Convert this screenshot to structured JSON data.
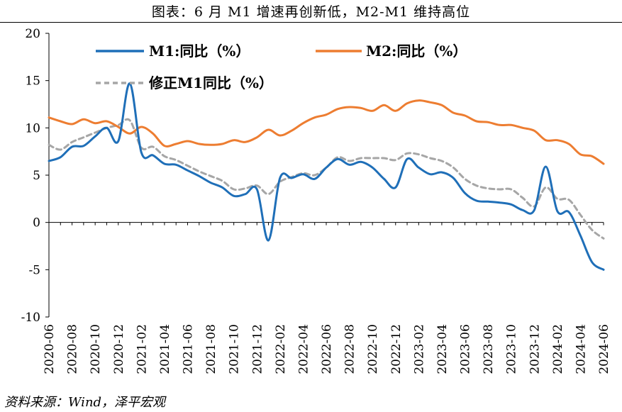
{
  "title": "图表：6 月 M1 增速再创新低，M2-M1 维持高位",
  "source": "资料来源：Wind，泽平宏观",
  "chart_data": {
    "type": "line",
    "ylim": [
      -10,
      20
    ],
    "yticks": [
      -10,
      -5,
      0,
      5,
      10,
      15,
      20
    ],
    "x": [
      "2020-06",
      "2020-07",
      "2020-08",
      "2020-09",
      "2020-10",
      "2020-11",
      "2020-12",
      "2021-01",
      "2021-02",
      "2021-03",
      "2021-04",
      "2021-05",
      "2021-06",
      "2021-07",
      "2021-08",
      "2021-09",
      "2021-10",
      "2021-11",
      "2021-12",
      "2022-01",
      "2022-02",
      "2022-03",
      "2022-04",
      "2022-05",
      "2022-06",
      "2022-07",
      "2022-08",
      "2022-09",
      "2022-10",
      "2022-11",
      "2022-12",
      "2023-01",
      "2023-02",
      "2023-03",
      "2023-04",
      "2023-05",
      "2023-06",
      "2023-07",
      "2023-08",
      "2023-09",
      "2023-10",
      "2023-11",
      "2023-12",
      "2024-01",
      "2024-02",
      "2024-03",
      "2024-04",
      "2024-05",
      "2024-06"
    ],
    "xticks": [
      "2020-06",
      "2020-08",
      "2020-10",
      "2020-12",
      "2021-02",
      "2021-04",
      "2021-06",
      "2021-08",
      "2021-10",
      "2021-12",
      "2022-02",
      "2022-04",
      "2022-06",
      "2022-08",
      "2022-10",
      "2022-12",
      "2023-02",
      "2023-04",
      "2023-06",
      "2023-08",
      "2023-10",
      "2023-12",
      "2024-02",
      "2024-04",
      "2024-06"
    ],
    "series": [
      {
        "name": "M1:同比（%）",
        "color": "#1f6fb8",
        "dash": false,
        "values": [
          6.5,
          6.9,
          8.0,
          8.1,
          9.1,
          10.0,
          8.6,
          14.7,
          7.4,
          7.1,
          6.2,
          6.1,
          5.5,
          4.9,
          4.2,
          3.7,
          2.8,
          3.0,
          3.5,
          -1.9,
          4.7,
          4.7,
          5.1,
          4.6,
          5.8,
          6.7,
          6.1,
          6.4,
          5.8,
          4.6,
          3.7,
          6.7,
          5.8,
          5.1,
          5.3,
          4.7,
          3.1,
          2.3,
          2.2,
          2.1,
          1.9,
          1.3,
          1.3,
          5.9,
          1.2,
          1.1,
          -1.4,
          -4.2,
          -5.0
        ]
      },
      {
        "name": "M2:同比（%）",
        "color": "#ed7d31",
        "dash": false,
        "values": [
          11.1,
          10.7,
          10.4,
          10.9,
          10.5,
          10.7,
          10.1,
          9.4,
          10.1,
          9.4,
          8.1,
          8.3,
          8.6,
          8.3,
          8.2,
          8.3,
          8.7,
          8.5,
          9.0,
          9.8,
          9.2,
          9.7,
          10.5,
          11.1,
          11.4,
          12.0,
          12.2,
          12.1,
          11.8,
          12.4,
          11.8,
          12.6,
          12.9,
          12.7,
          12.4,
          11.6,
          11.3,
          10.7,
          10.6,
          10.3,
          10.3,
          10.0,
          9.7,
          8.7,
          8.7,
          8.3,
          7.2,
          7.0,
          6.2
        ]
      },
      {
        "name": "修正M1同比（%）",
        "color": "#a6a6a6",
        "dash": true,
        "values": [
          8.2,
          7.7,
          8.5,
          9.0,
          9.5,
          10.0,
          10.3,
          10.8,
          7.9,
          8.0,
          7.0,
          6.6,
          6.0,
          5.4,
          4.9,
          4.4,
          3.5,
          3.6,
          3.9,
          3.0,
          4.3,
          4.8,
          5.2,
          5.0,
          5.8,
          6.9,
          6.5,
          6.8,
          6.8,
          6.8,
          6.6,
          7.3,
          7.2,
          6.8,
          6.5,
          5.8,
          4.6,
          3.9,
          3.6,
          3.5,
          3.5,
          2.6,
          1.7,
          3.7,
          2.5,
          2.4,
          0.8,
          -0.8,
          -1.7
        ]
      }
    ]
  }
}
